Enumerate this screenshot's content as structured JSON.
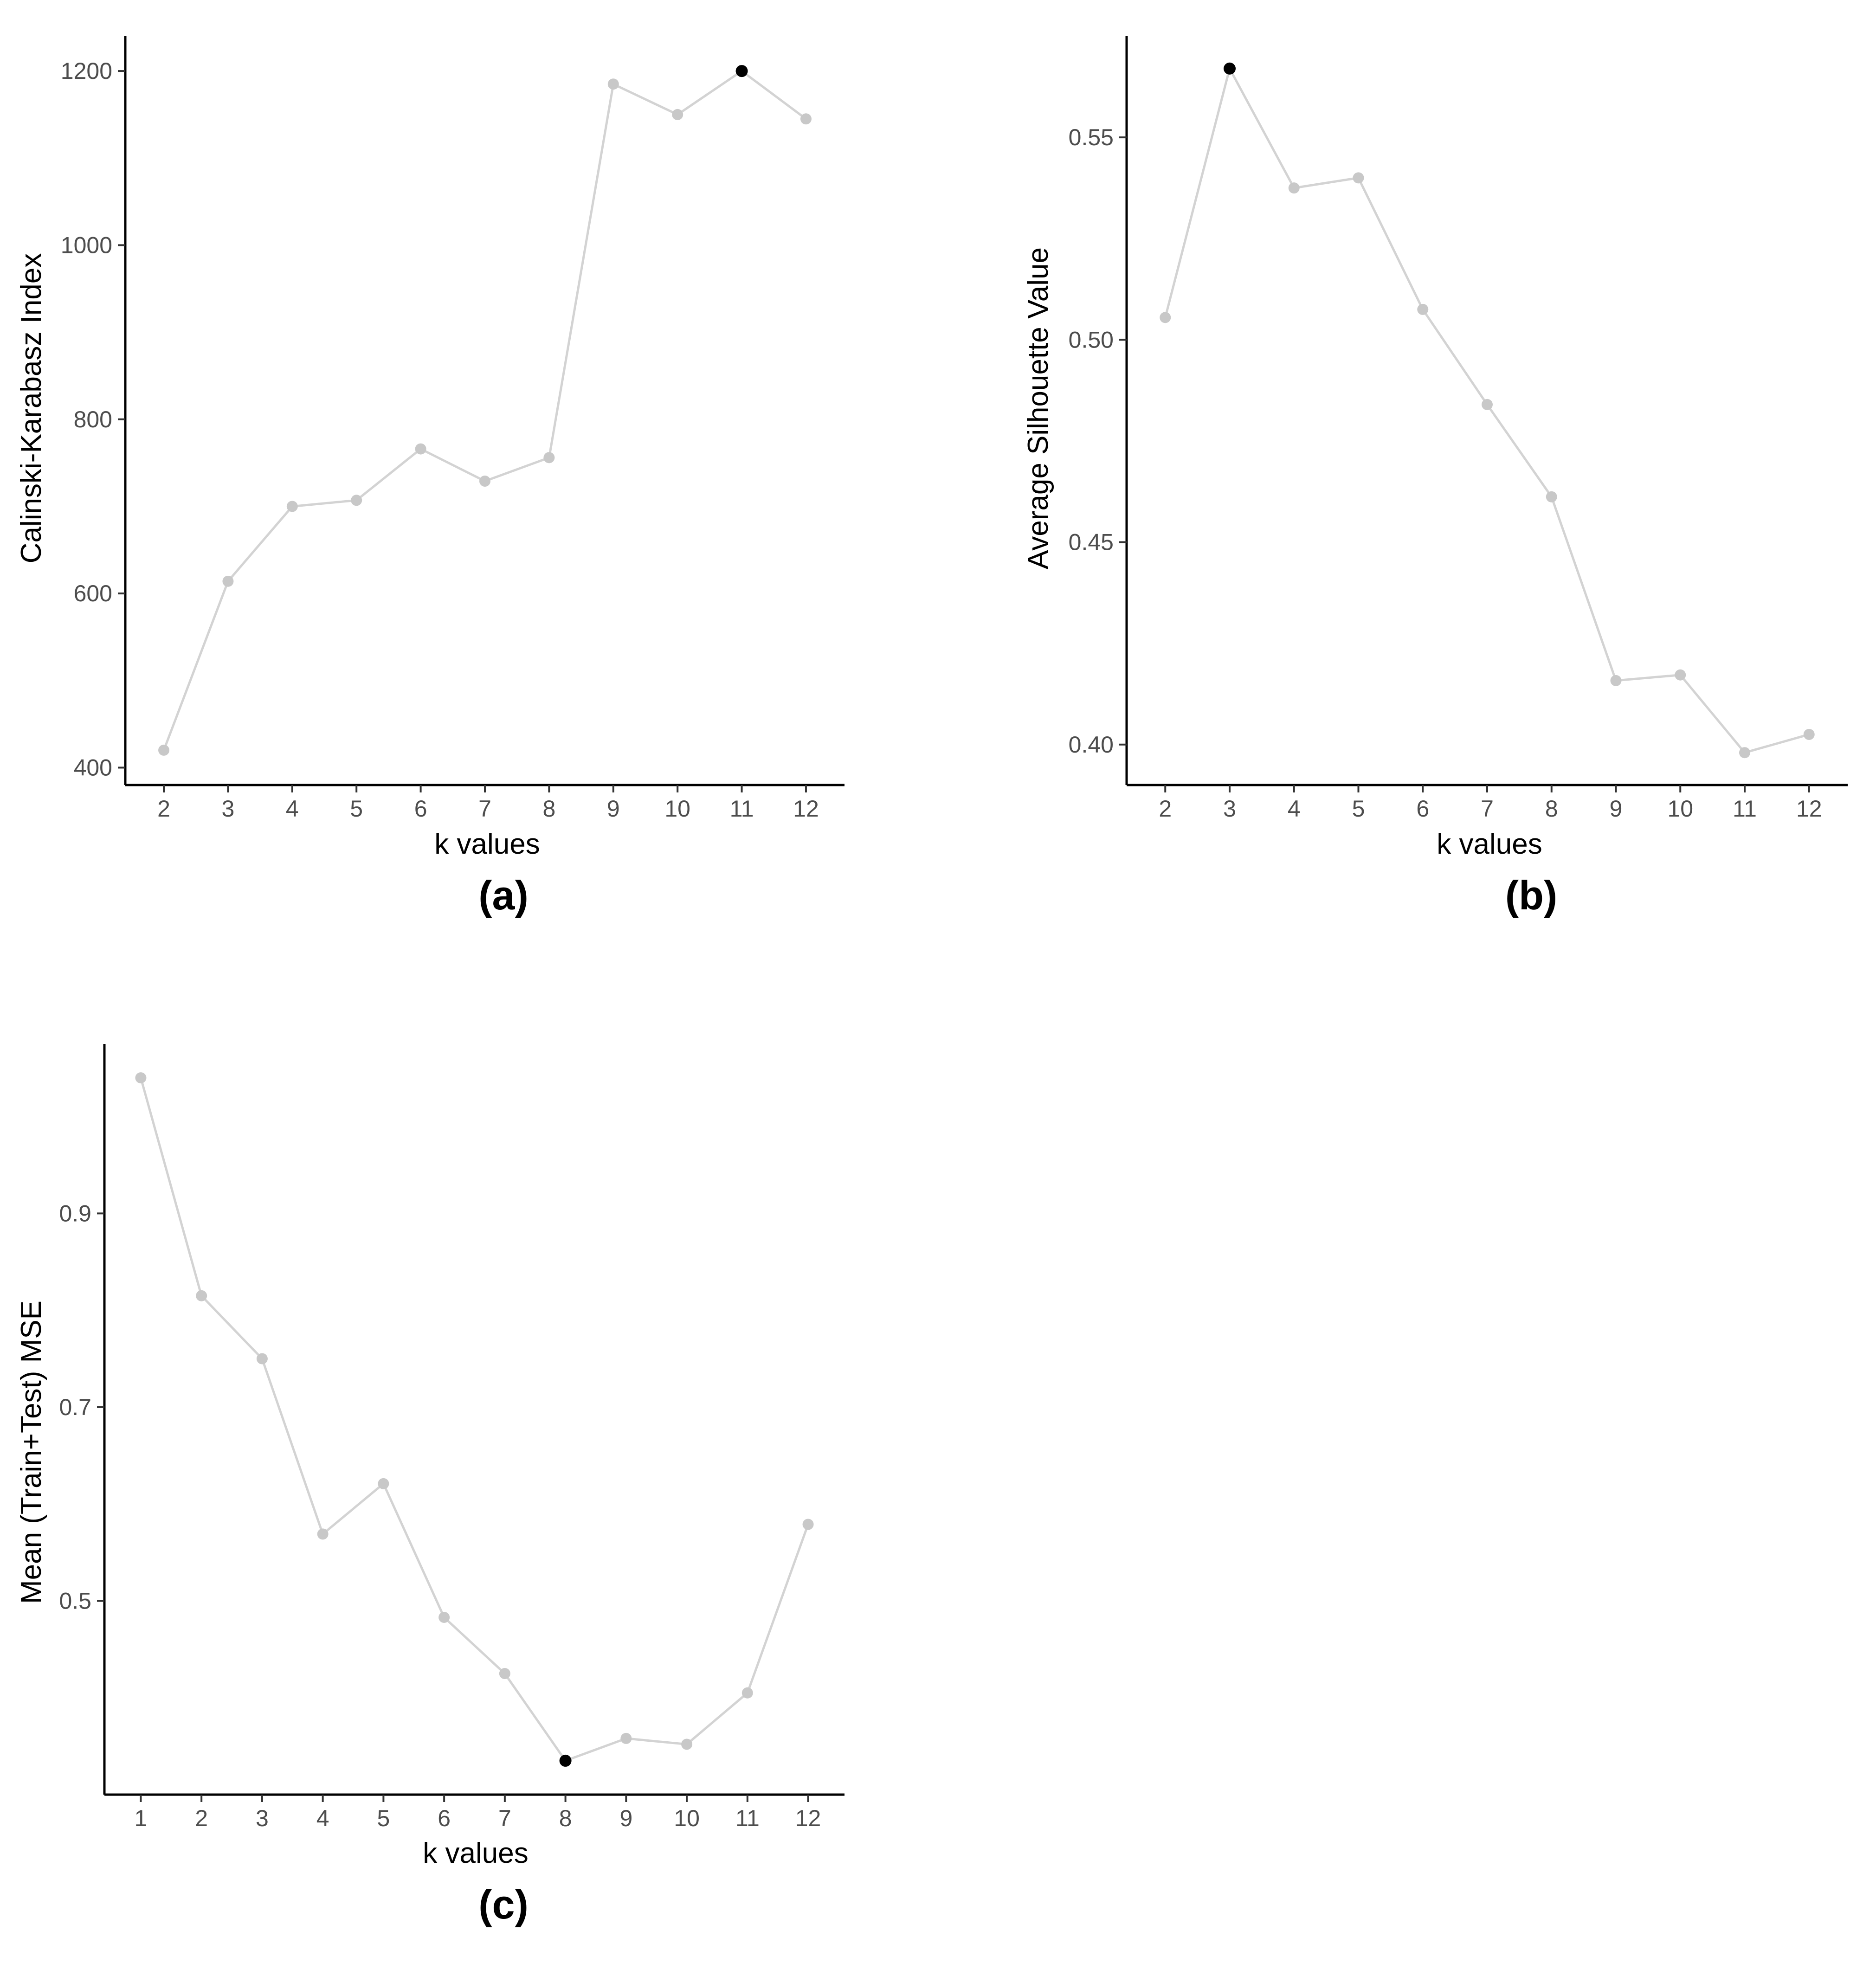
{
  "chart_data": [
    {
      "id": "a",
      "type": "line",
      "panel_label": "(a)",
      "title": "",
      "xlabel": "k values",
      "ylabel": "Calinski-Karabasz Index",
      "x": [
        2,
        3,
        4,
        5,
        6,
        7,
        8,
        9,
        10,
        11,
        12
      ],
      "values": [
        420,
        614,
        700,
        707,
        766,
        729,
        756,
        1185,
        1150,
        1200,
        1145
      ],
      "highlight_index": 9,
      "xlim": [
        1.4,
        12.6
      ],
      "ylim": [
        380,
        1240
      ],
      "xticks": [
        2,
        3,
        4,
        5,
        6,
        7,
        8,
        9,
        10,
        11,
        12
      ],
      "yticks": [
        400,
        600,
        800,
        1000,
        1200
      ],
      "ytick_labels": [
        "400",
        "600",
        "800",
        "1000",
        "1200"
      ],
      "grid": false,
      "line_color": "#d3d3d3",
      "point_color": "#c8c8c8",
      "highlight_color": "#000000"
    },
    {
      "id": "b",
      "type": "line",
      "panel_label": "(b)",
      "title": "",
      "xlabel": "k values",
      "ylabel": "Average Silhouette Value",
      "x": [
        2,
        3,
        4,
        5,
        6,
        7,
        8,
        9,
        10,
        11,
        12
      ],
      "values": [
        0.5055,
        0.567,
        0.5375,
        0.54,
        0.5075,
        0.484,
        0.4612,
        0.4158,
        0.4172,
        0.398,
        0.4025
      ],
      "highlight_index": 1,
      "xlim": [
        1.4,
        12.6
      ],
      "ylim": [
        0.39,
        0.575
      ],
      "xticks": [
        2,
        3,
        4,
        5,
        6,
        7,
        8,
        9,
        10,
        11,
        12
      ],
      "yticks": [
        0.4,
        0.45,
        0.5,
        0.55
      ],
      "ytick_labels": [
        "0.40",
        "0.45",
        "0.50",
        "0.55"
      ],
      "grid": false,
      "line_color": "#d3d3d3",
      "point_color": "#c8c8c8",
      "highlight_color": "#000000"
    },
    {
      "id": "c",
      "type": "line",
      "panel_label": "(c)",
      "title": "",
      "xlabel": "k values",
      "ylabel": "Mean (Train+Test) MSE",
      "x": [
        1,
        2,
        3,
        4,
        5,
        6,
        7,
        8,
        9,
        10,
        11,
        12
      ],
      "values": [
        1.04,
        0.815,
        0.75,
        0.569,
        0.621,
        0.483,
        0.425,
        0.335,
        0.358,
        0.352,
        0.405,
        0.579
      ],
      "highlight_index": 7,
      "xlim": [
        0.4,
        12.6
      ],
      "ylim": [
        0.3,
        1.075
      ],
      "xticks": [
        1,
        2,
        3,
        4,
        5,
        6,
        7,
        8,
        9,
        10,
        11,
        12
      ],
      "yticks": [
        0.5,
        0.7,
        0.9
      ],
      "ytick_labels": [
        "0.5",
        "0.7",
        "0.9"
      ],
      "grid": false,
      "line_color": "#d3d3d3",
      "point_color": "#c8c8c8",
      "highlight_color": "#000000"
    }
  ]
}
